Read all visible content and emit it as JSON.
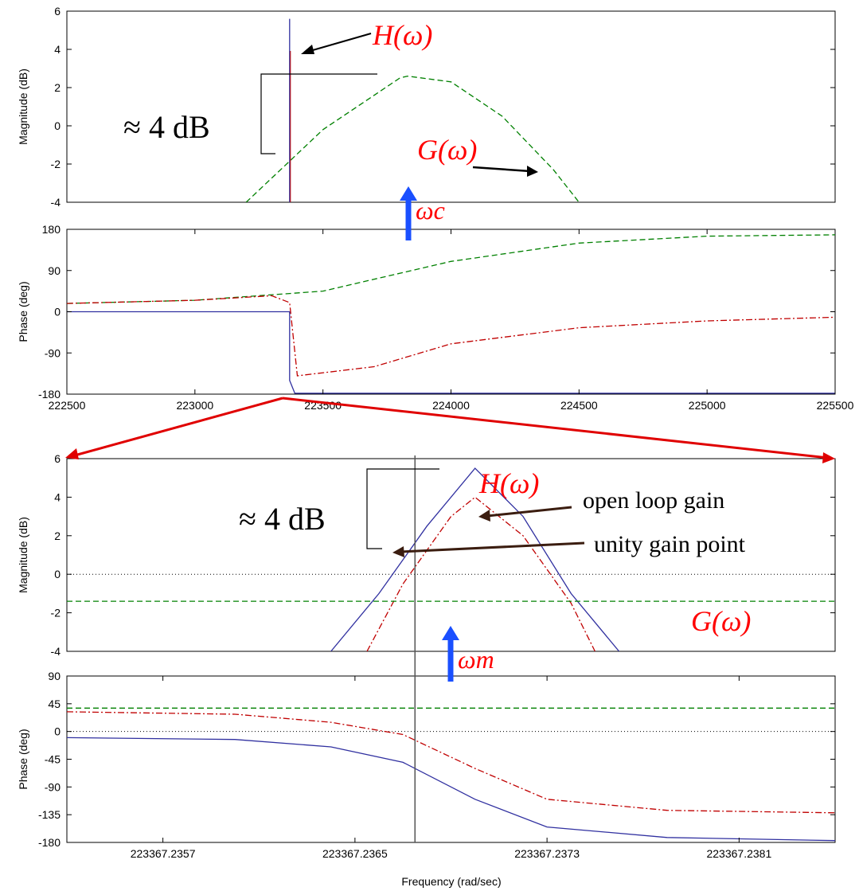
{
  "chart_data": [
    {
      "type": "line",
      "panel": "top-magnitude",
      "ylabel": "Magnitude (dB)",
      "xlim": [
        222500,
        225500
      ],
      "ylim": [
        -4,
        6
      ],
      "yticks": [
        6,
        4,
        2,
        0,
        -2,
        -4
      ],
      "series": [
        {
          "name": "H(ω)",
          "kind": "spike",
          "x": [
            223370,
            223370
          ],
          "y": [
            -4,
            5.6
          ],
          "color": "#3030a0"
        },
        {
          "name": "G(ω)",
          "x": [
            223200,
            223500,
            223800,
            223830,
            224000,
            224200,
            224400,
            224500
          ],
          "y": [
            -4,
            -0.2,
            2.5,
            2.6,
            2.3,
            0.5,
            -2.3,
            -4
          ],
          "color": "#008000"
        }
      ],
      "annotations": {
        "delta": "≈ 4 dB",
        "h_label": "H(ω)",
        "g_label": "G(ω)",
        "wc_label": "ωc"
      }
    },
    {
      "type": "line",
      "panel": "top-phase",
      "ylabel": "Phase (deg)",
      "xlim": [
        222500,
        225500
      ],
      "ylim": [
        -180,
        180
      ],
      "yticks": [
        180,
        90,
        0,
        -90,
        -180
      ],
      "xticks": [
        222500,
        223000,
        223500,
        224000,
        224500,
        225000,
        225500
      ],
      "series": [
        {
          "name": "blue",
          "x": [
            222500,
            223370,
            223370,
            223390,
            225500
          ],
          "y": [
            0,
            0,
            -150,
            -178,
            -178
          ],
          "color": "#3030a0"
        },
        {
          "name": "green",
          "x": [
            222500,
            223000,
            223500,
            224000,
            224500,
            225000,
            225500
          ],
          "y": [
            18,
            25,
            45,
            110,
            150,
            165,
            168
          ],
          "color": "#008000"
        },
        {
          "name": "red",
          "x": [
            222500,
            223000,
            223300,
            223370,
            223400,
            223700,
            224000,
            224500,
            225000,
            225500
          ],
          "y": [
            18,
            25,
            35,
            20,
            -140,
            -120,
            -70,
            -35,
            -20,
            -12
          ],
          "color": "#c00000"
        }
      ]
    },
    {
      "type": "line",
      "panel": "bottom-magnitude",
      "ylabel": "Magnitude (dB)",
      "xlim": [
        223367.2353,
        223367.2385
      ],
      "ylim": [
        -4,
        6
      ],
      "yticks": [
        6,
        4,
        2,
        0,
        -2,
        -4
      ],
      "series": [
        {
          "name": "blue",
          "x": [
            223367.2364,
            223367.2366,
            223367.2368,
            223367.237,
            223367.2372,
            223367.2374,
            223367.2376
          ],
          "y": [
            -4,
            -1,
            2.5,
            5.5,
            3,
            -1,
            -4
          ],
          "color": "#3030a0"
        },
        {
          "name": "red",
          "x": [
            223367.23655,
            223367.2367,
            223367.2369,
            223367.237,
            223367.2372,
            223367.2374,
            223367.2375
          ],
          "y": [
            -4,
            -0.5,
            3,
            4,
            2,
            -1.5,
            -4
          ],
          "color": "#c00000"
        },
        {
          "name": "G(ω)",
          "x": [
            223367.2353,
            223367.2385
          ],
          "y": [
            -1.4,
            -1.4
          ],
          "color": "#008000"
        }
      ],
      "annotations": {
        "delta": "≈ 4 dB",
        "h_label": "H(ω)",
        "g_label": "G(ω)",
        "wm_label": "ωm",
        "open_loop": "open loop gain",
        "unity_gain": "unity gain point"
      }
    },
    {
      "type": "line",
      "panel": "bottom-phase",
      "ylabel": "Phase (deg)",
      "xlabel": "Frequency  (rad/sec)",
      "xlim": [
        223367.2353,
        223367.2385
      ],
      "ylim": [
        -180,
        90
      ],
      "yticks": [
        90,
        45,
        0,
        -45,
        -90,
        -135,
        -180
      ],
      "xticks": [
        223367.2357,
        223367.2365,
        223367.2373,
        223367.2381
      ],
      "xticklabels": [
        "223367.2357",
        "223367.2365",
        "223367.2373",
        "223367.2381"
      ],
      "series": [
        {
          "name": "blue",
          "x": [
            223367.2353,
            223367.236,
            223367.2364,
            223367.2367,
            223367.237,
            223367.2373,
            223367.2378,
            223367.2385
          ],
          "y": [
            -10,
            -13,
            -25,
            -50,
            -110,
            -155,
            -172,
            -177
          ],
          "color": "#3030a0"
        },
        {
          "name": "red",
          "x": [
            223367.2353,
            223367.236,
            223367.2364,
            223367.2367,
            223367.237,
            223367.2373,
            223367.2378,
            223367.2385
          ],
          "y": [
            32,
            28,
            15,
            -5,
            -60,
            -110,
            -128,
            -132
          ],
          "color": "#c00000"
        },
        {
          "name": "green",
          "x": [
            223367.2353,
            223367.2385
          ],
          "y": [
            38,
            38
          ],
          "color": "#008000"
        }
      ]
    }
  ]
}
